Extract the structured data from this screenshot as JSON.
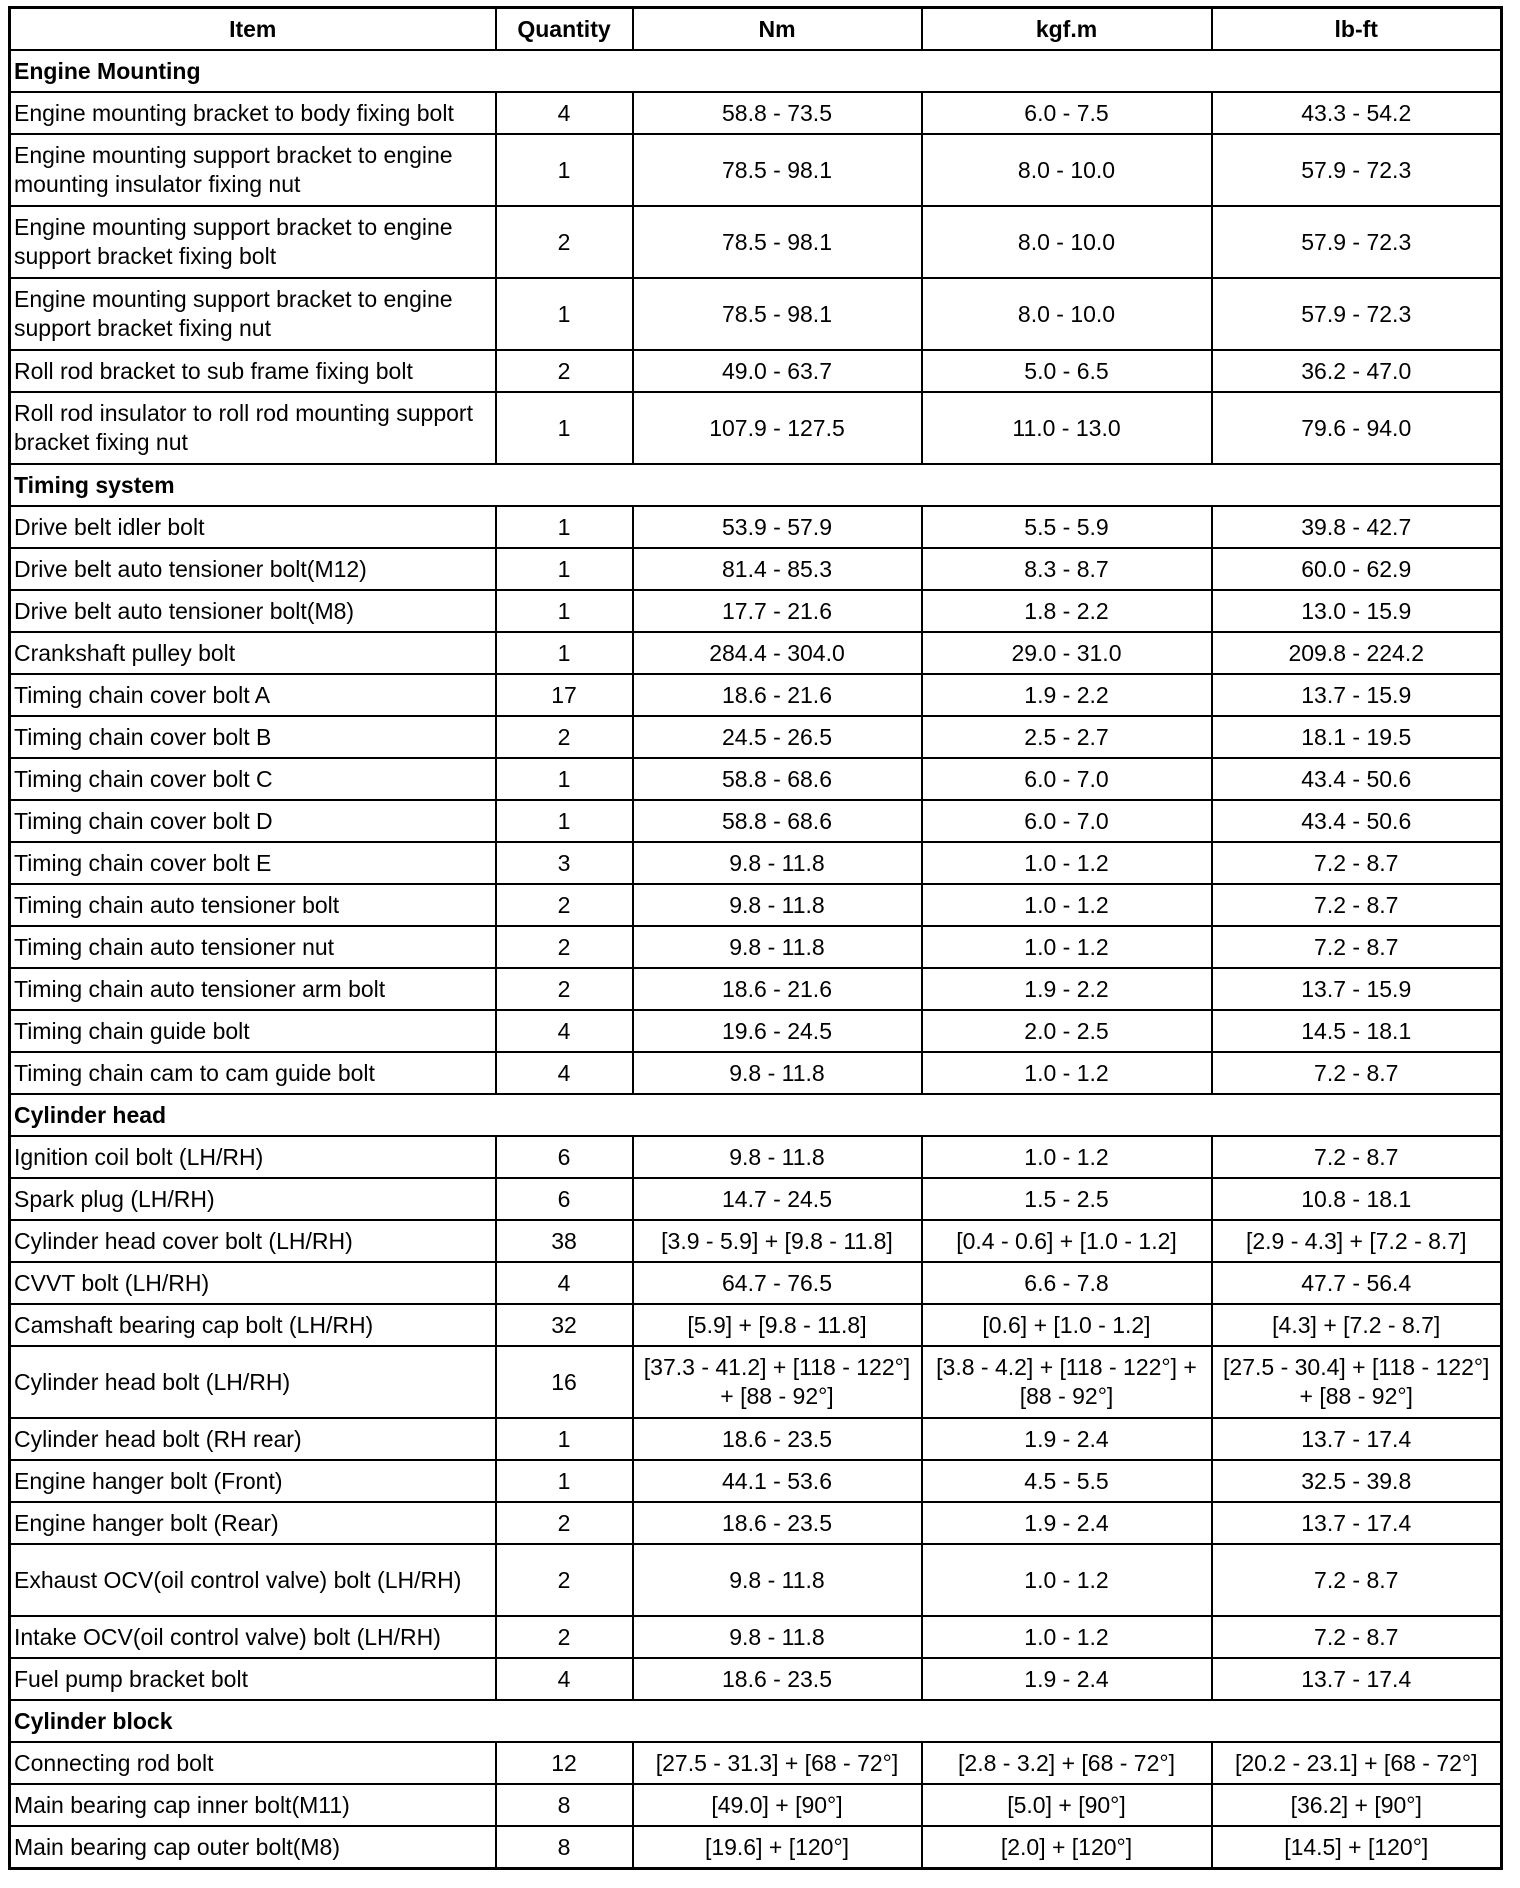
{
  "headers": [
    "Item",
    "Quantity",
    "Nm",
    "kgf.m",
    "lb-ft"
  ],
  "sections": [
    {
      "title": "Engine Mounting",
      "rows": [
        [
          "Engine mounting bracket to body fixing bolt",
          "4",
          "58.8 - 73.5",
          "6.0 - 7.5",
          "43.3 - 54.2"
        ],
        [
          "Engine mounting support bracket to engine mounting insulator fixing nut",
          "1",
          "78.5 - 98.1",
          "8.0 - 10.0",
          "57.9 - 72.3"
        ],
        [
          "Engine mounting support bracket to engine support bracket fixing bolt",
          "2",
          "78.5 - 98.1",
          "8.0 - 10.0",
          "57.9 - 72.3"
        ],
        [
          "Engine mounting support bracket to engine support bracket fixing nut",
          "1",
          "78.5 - 98.1",
          "8.0 - 10.0",
          "57.9 - 72.3"
        ],
        [
          "Roll rod bracket to sub frame fixing bolt",
          "2",
          "49.0 - 63.7",
          "5.0 - 6.5",
          "36.2 - 47.0"
        ],
        [
          "Roll rod insulator to roll rod mounting support bracket fixing nut",
          "1",
          "107.9 - 127.5",
          "11.0 - 13.0",
          "79.6 - 94.0"
        ]
      ]
    },
    {
      "title": "Timing system",
      "rows": [
        [
          "Drive belt idler bolt",
          "1",
          "53.9 - 57.9",
          "5.5 - 5.9",
          "39.8 - 42.7"
        ],
        [
          "Drive belt auto tensioner bolt(M12)",
          "1",
          "81.4 - 85.3",
          "8.3 - 8.7",
          "60.0 - 62.9"
        ],
        [
          "Drive belt auto tensioner bolt(M8)",
          "1",
          "17.7 - 21.6",
          "1.8 - 2.2",
          "13.0 - 15.9"
        ],
        [
          "Crankshaft pulley bolt",
          "1",
          "284.4 - 304.0",
          "29.0 - 31.0",
          "209.8 - 224.2"
        ],
        [
          "Timing chain cover bolt A",
          "17",
          "18.6 - 21.6",
          "1.9 - 2.2",
          "13.7 - 15.9"
        ],
        [
          "Timing chain cover bolt B",
          "2",
          "24.5 - 26.5",
          "2.5 - 2.7",
          "18.1 - 19.5"
        ],
        [
          "Timing chain cover bolt C",
          "1",
          "58.8 - 68.6",
          "6.0 - 7.0",
          "43.4 - 50.6"
        ],
        [
          "Timing chain cover bolt D",
          "1",
          "58.8 - 68.6",
          "6.0 - 7.0",
          "43.4 - 50.6"
        ],
        [
          "Timing chain cover bolt E",
          "3",
          "9.8 - 11.8",
          "1.0 - 1.2",
          "7.2 - 8.7"
        ],
        [
          "Timing chain auto tensioner bolt",
          "2",
          "9.8 - 11.8",
          "1.0 - 1.2",
          "7.2 - 8.7"
        ],
        [
          "Timing chain auto tensioner nut",
          "2",
          "9.8 - 11.8",
          "1.0 - 1.2",
          "7.2 - 8.7"
        ],
        [
          "Timing chain auto tensioner arm bolt",
          "2",
          "18.6 - 21.6",
          "1.9 - 2.2",
          "13.7 - 15.9"
        ],
        [
          "Timing chain guide bolt",
          "4",
          "19.6 - 24.5",
          "2.0 - 2.5",
          "14.5 - 18.1"
        ],
        [
          "Timing chain cam to cam guide bolt",
          "4",
          "9.8 - 11.8",
          "1.0 - 1.2",
          "7.2 - 8.7"
        ]
      ]
    },
    {
      "title": "Cylinder head",
      "rows": [
        [
          "Ignition coil bolt (LH/RH)",
          "6",
          "9.8 - 11.8",
          "1.0 - 1.2",
          "7.2 - 8.7"
        ],
        [
          "Spark plug (LH/RH)",
          "6",
          "14.7 - 24.5",
          "1.5 - 2.5",
          "10.8 - 18.1"
        ],
        [
          "Cylinder head cover bolt (LH/RH)",
          "38",
          "[3.9 - 5.9] + [9.8 - 11.8]",
          "[0.4 - 0.6] + [1.0 - 1.2]",
          "[2.9 - 4.3] + [7.2 - 8.7]"
        ],
        [
          "CVVT bolt (LH/RH)",
          "4",
          "64.7 - 76.5",
          "6.6 - 7.8",
          "47.7 - 56.4"
        ],
        [
          "Camshaft bearing cap bolt (LH/RH)",
          "32",
          "[5.9] + [9.8 - 11.8]",
          "[0.6] + [1.0 - 1.2]",
          "[4.3] + [7.2 - 8.7]"
        ],
        [
          "Cylinder head bolt (LH/RH)",
          "16",
          "[37.3 - 41.2] + [118 - 122°] + [88 - 92°]",
          "[3.8 - 4.2] + [118 - 122°] + [88 - 92°]",
          "[27.5 - 30.4] + [118 - 122°] + [88 - 92°]"
        ],
        [
          "Cylinder head bolt (RH rear)",
          "1",
          "18.6 - 23.5",
          "1.9 - 2.4",
          "13.7 - 17.4"
        ],
        [
          "Engine hanger bolt (Front)",
          "1",
          "44.1 - 53.6",
          "4.5 - 5.5",
          "32.5 - 39.8"
        ],
        [
          "Engine hanger bolt (Rear)",
          "2",
          "18.6 - 23.5",
          "1.9 - 2.4",
          "13.7 - 17.4"
        ],
        [
          "Exhaust OCV(oil control valve) bolt (LH/RH)",
          "2",
          "9.8 - 11.8",
          "1.0 - 1.2",
          "7.2 - 8.7"
        ],
        [
          "Intake OCV(oil control valve) bolt (LH/RH)",
          "2",
          "9.8 - 11.8",
          "1.0 - 1.2",
          "7.2 - 8.7"
        ],
        [
          "Fuel pump bracket bolt",
          "4",
          "18.6 - 23.5",
          "1.9 - 2.4",
          "13.7 - 17.4"
        ]
      ]
    },
    {
      "title": "Cylinder block",
      "rows": [
        [
          "Connecting rod bolt",
          "12",
          "[27.5 - 31.3] + [68 - 72°]",
          "[2.8 - 3.2] + [68 - 72°]",
          "[20.2 - 23.1] + [68 - 72°]"
        ],
        [
          "Main bearing cap inner bolt(M11)",
          "8",
          "[49.0] + [90°]",
          "[5.0] + [90°]",
          "[36.2] + [90°]"
        ],
        [
          "Main bearing cap outer bolt(M8)",
          "8",
          "[19.6] + [120°]",
          "[2.0] + [120°]",
          "[14.5] + [120°]"
        ]
      ]
    }
  ]
}
